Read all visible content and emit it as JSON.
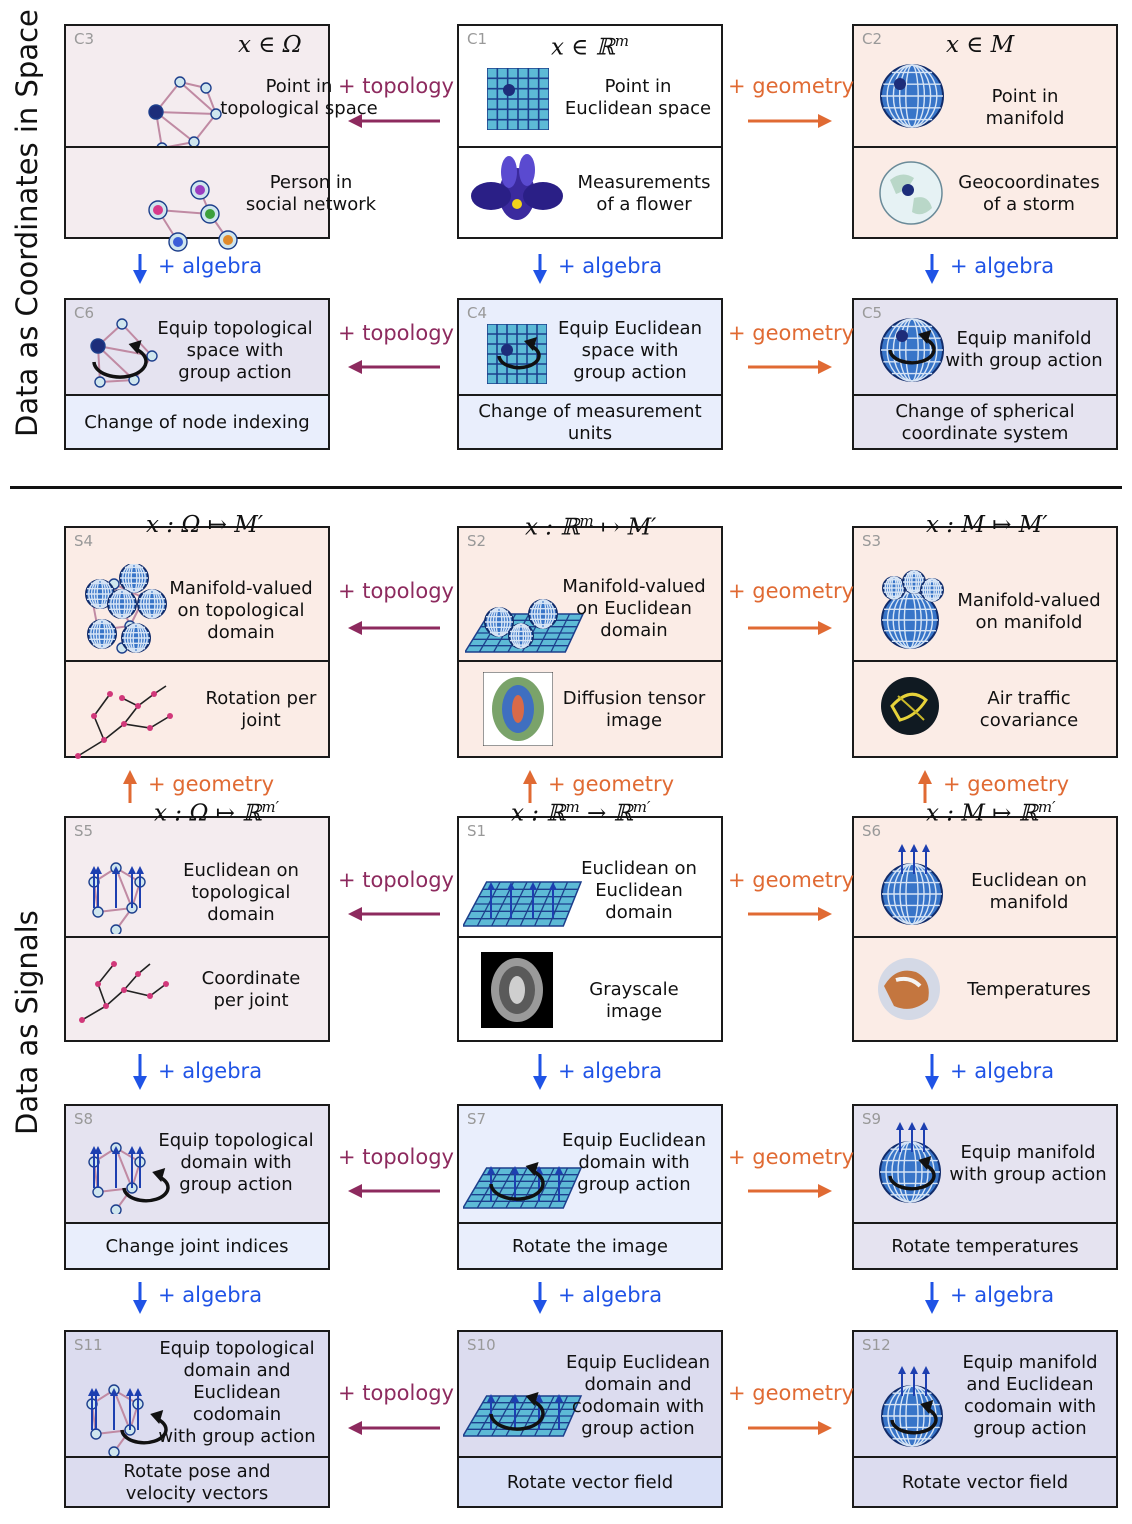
{
  "side_labels": {
    "top": "Data as Coordinates in Space",
    "bottom": "Data as Signals"
  },
  "arrow_labels": {
    "topology": "+ topology",
    "geometry": "+ geometry",
    "algebra": "+ algebra"
  },
  "colors": {
    "topology": "#8d2a5e",
    "geometry": "#e06a33",
    "algebra": "#1f53e6",
    "pink_panel": "#f4ecef",
    "blue_panel": "#e9eefc",
    "orange_panel": "#fbece6",
    "lavender_panel": "#e5e3f0",
    "slate_panel": "#dcdcef",
    "bluegrid": "#5dbad6",
    "sphere": "#3875c8"
  },
  "boxes": {
    "C1": {
      "code": "C1",
      "formula": "x ∈ ℝ^m",
      "upper": "Point in\nEuclidean space",
      "lower": "Measurements\nof a flower"
    },
    "C2": {
      "code": "C2",
      "formula": "x ∈ M",
      "upper": "Point in manifold",
      "lower": "Geocoordinates\nof a storm"
    },
    "C3": {
      "code": "C3",
      "formula": "x ∈ Ω",
      "upper": "Point in\ntopological space",
      "lower": "Person in\nsocial network"
    },
    "C4": {
      "code": "C4",
      "upper": "Equip Euclidean\nspace with\ngroup action",
      "lower": "Change of measurement\nunits"
    },
    "C5": {
      "code": "C5",
      "upper": "Equip manifold\nwith group action",
      "lower": "Change of spherical\ncoordinate system"
    },
    "C6": {
      "code": "C6",
      "upper": "Equip topological\nspace with\ngroup action",
      "lower": "Change of node indexing"
    },
    "S1": {
      "code": "S1",
      "formula": "x : ℝ^m → ℝ^m′",
      "upper": "Euclidean on\nEuclidean\ndomain",
      "lower": "Grayscale image"
    },
    "S2": {
      "code": "S2",
      "formula": "x : ℝ^m ↦ M′",
      "upper": "Manifold-valued\non Euclidean\ndomain",
      "lower": "Diffusion tensor\nimage"
    },
    "S3": {
      "code": "S3",
      "formula": "x : M ↦ M′",
      "upper": "Manifold-valued\non manifold",
      "lower": "Air traffic\ncovariance"
    },
    "S4": {
      "code": "S4",
      "formula": "x : Ω ↦ M′",
      "upper": "Manifold-valued\non topological\ndomain",
      "lower": "Rotation per\njoint"
    },
    "S5": {
      "code": "S5",
      "formula": "x : Ω ↦ ℝ^m′",
      "upper": "Euclidean on\ntopological\ndomain",
      "lower": "Coordinate\nper joint"
    },
    "S6": {
      "code": "S6",
      "formula": "x : M ↦ ℝ^m′",
      "upper": "Euclidean on\nmanifold",
      "lower": "Temperatures"
    },
    "S7": {
      "code": "S7",
      "upper": "Equip Euclidean\ndomain with\ngroup action",
      "lower": "Rotate the image"
    },
    "S8": {
      "code": "S8",
      "upper": "Equip topological\ndomain with\ngroup action",
      "lower": "Change joint indices"
    },
    "S9": {
      "code": "S9",
      "upper": "Equip manifold\nwith group action",
      "lower": "Rotate temperatures"
    },
    "S10": {
      "code": "S10",
      "upper": "Equip Euclidean\ndomain and\ncodomain with\ngroup action",
      "lower": "Rotate vector field"
    },
    "S11": {
      "code": "S11",
      "upper": "Equip topological\ndomain and\nEuclidean\ncodomain\nwith group action",
      "lower": "Rotate pose and\nvelocity vectors"
    },
    "S12": {
      "code": "S12",
      "upper": "Equip manifold\nand Euclidean\ncodomain with\ngroup action",
      "lower": "Rotate vector field"
    }
  }
}
